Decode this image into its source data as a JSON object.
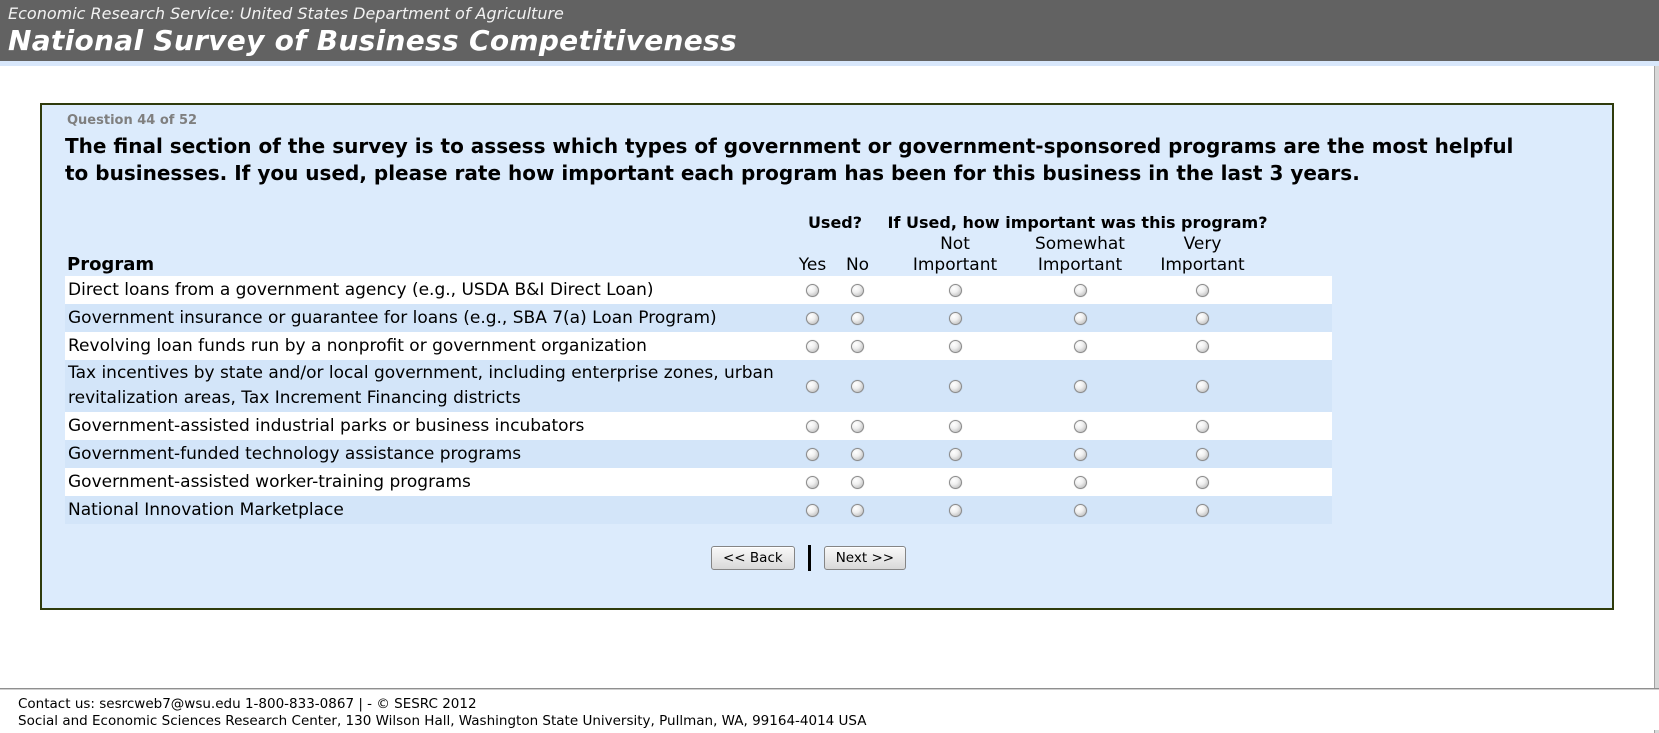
{
  "banner": {
    "agency_line": "Economic Research Service: United States Department of Agriculture",
    "title": "National Survey of Business Competitiveness"
  },
  "question": {
    "number_label": "Question 44 of 52",
    "text": "The final section of the survey is to assess which types of government or government-sponsored programs are the most helpful to businesses. If you used, please rate how important each program has been for this business in the last 3 years."
  },
  "table": {
    "program_header": "Program",
    "used_header": "Used?",
    "importance_header": "If Used, how important was this program?",
    "yes_label": "Yes",
    "no_label": "No",
    "importance_cols": [
      {
        "top": "Not",
        "bottom": "Important"
      },
      {
        "top": "Somewhat",
        "bottom": "Important"
      },
      {
        "top": "Very",
        "bottom": "Important"
      }
    ],
    "rows": [
      {
        "label": "Direct loans from a government agency (e.g., USDA B&I Direct Loan)"
      },
      {
        "label": "Government insurance or guarantee for loans (e.g., SBA 7(a) Loan Program)"
      },
      {
        "label": "Revolving loan funds run by a nonprofit or government organization"
      },
      {
        "label": "Tax incentives by state and/or local government, including enterprise zones, urban revitalization areas, Tax Increment Financing districts"
      },
      {
        "label": "Government-assisted industrial parks or business incubators"
      },
      {
        "label": "Government-funded technology assistance programs"
      },
      {
        "label": "Government-assisted worker-training programs"
      },
      {
        "label": "National Innovation Marketplace"
      }
    ]
  },
  "buttons": {
    "back": "<< Back",
    "separator": "|",
    "next": "Next >>"
  },
  "footer": {
    "line1": "Contact us: sesrcweb7@wsu.edu 1-800-833-0867 | - © SESRC 2012",
    "line2": "Social and Economic Sciences Research Center, 130 Wilson Hall, Washington State University, Pullman, WA, 99164-4014 USA"
  },
  "colors": {
    "banner_bar": "#626262",
    "banner_text": "#ffffff",
    "panel_background": "#dcebfc",
    "panel_border": "#2f3b0c",
    "row_stripe_white": "#ffffff",
    "row_stripe_blue": "#d3e5f9",
    "question_number_gray": "#7f7f7f"
  }
}
